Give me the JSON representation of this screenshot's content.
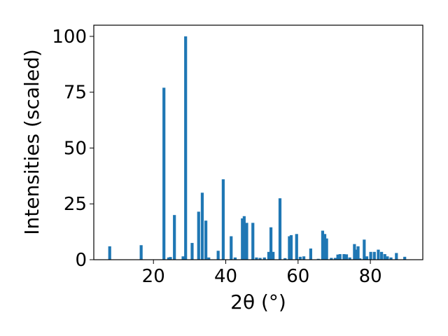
{
  "chart_data": {
    "type": "bar",
    "title": "",
    "xlabel": "2θ (°)",
    "ylabel": "Intensities (scaled)",
    "xlim": [
      3.5,
      94.5
    ],
    "ylim": [
      0,
      105
    ],
    "xticks": [
      20,
      40,
      60,
      80
    ],
    "yticks": [
      0,
      25,
      50,
      75,
      100
    ],
    "grid": false,
    "bar_color": "#1f77b4",
    "series": [
      {
        "x": [
          7.9,
          16.6,
          22.9,
          24.2,
          24.7,
          25.8,
          28.2,
          28.9,
          30.7,
          32.5,
          33.5,
          34.5,
          35.3,
          37.9,
          39.3,
          41.5,
          42.6,
          44.6,
          45.1,
          45.8,
          47.5,
          48.5,
          49.5,
          50.7,
          51.9,
          52.5,
          53.1,
          55.0,
          56.4,
          57.6,
          58.1,
          59.6,
          60.6,
          61.6,
          63.5,
          65.6,
          66.8,
          67.4,
          67.9,
          69.2,
          70.3,
          71.0,
          71.6,
          72.7,
          73.4,
          74.3,
          75.6,
          76.1,
          76.6,
          77.1,
          78.3,
          79.0,
          80.1,
          81.1,
          82.2,
          83.1,
          84.0,
          84.7,
          85.7,
          87.2,
          89.5
        ],
        "y": [
          6,
          6.5,
          77,
          1,
          1.2,
          20,
          1.5,
          100,
          7.5,
          21.5,
          30,
          17.5,
          1,
          4,
          36,
          10.5,
          1,
          18.5,
          19.5,
          16.5,
          16.5,
          1,
          0.8,
          1,
          3.5,
          14.5,
          3.5,
          27.5,
          0.7,
          10.5,
          11,
          11.5,
          1.3,
          1.5,
          5,
          0.4,
          13,
          11.5,
          9.5,
          0.8,
          0.8,
          2.3,
          2.5,
          2.5,
          2.4,
          1,
          7,
          4.5,
          6,
          0.6,
          9,
          1.5,
          3.5,
          3.5,
          4.5,
          3.5,
          2.5,
          1.5,
          1,
          3,
          1.3
        ]
      }
    ]
  }
}
